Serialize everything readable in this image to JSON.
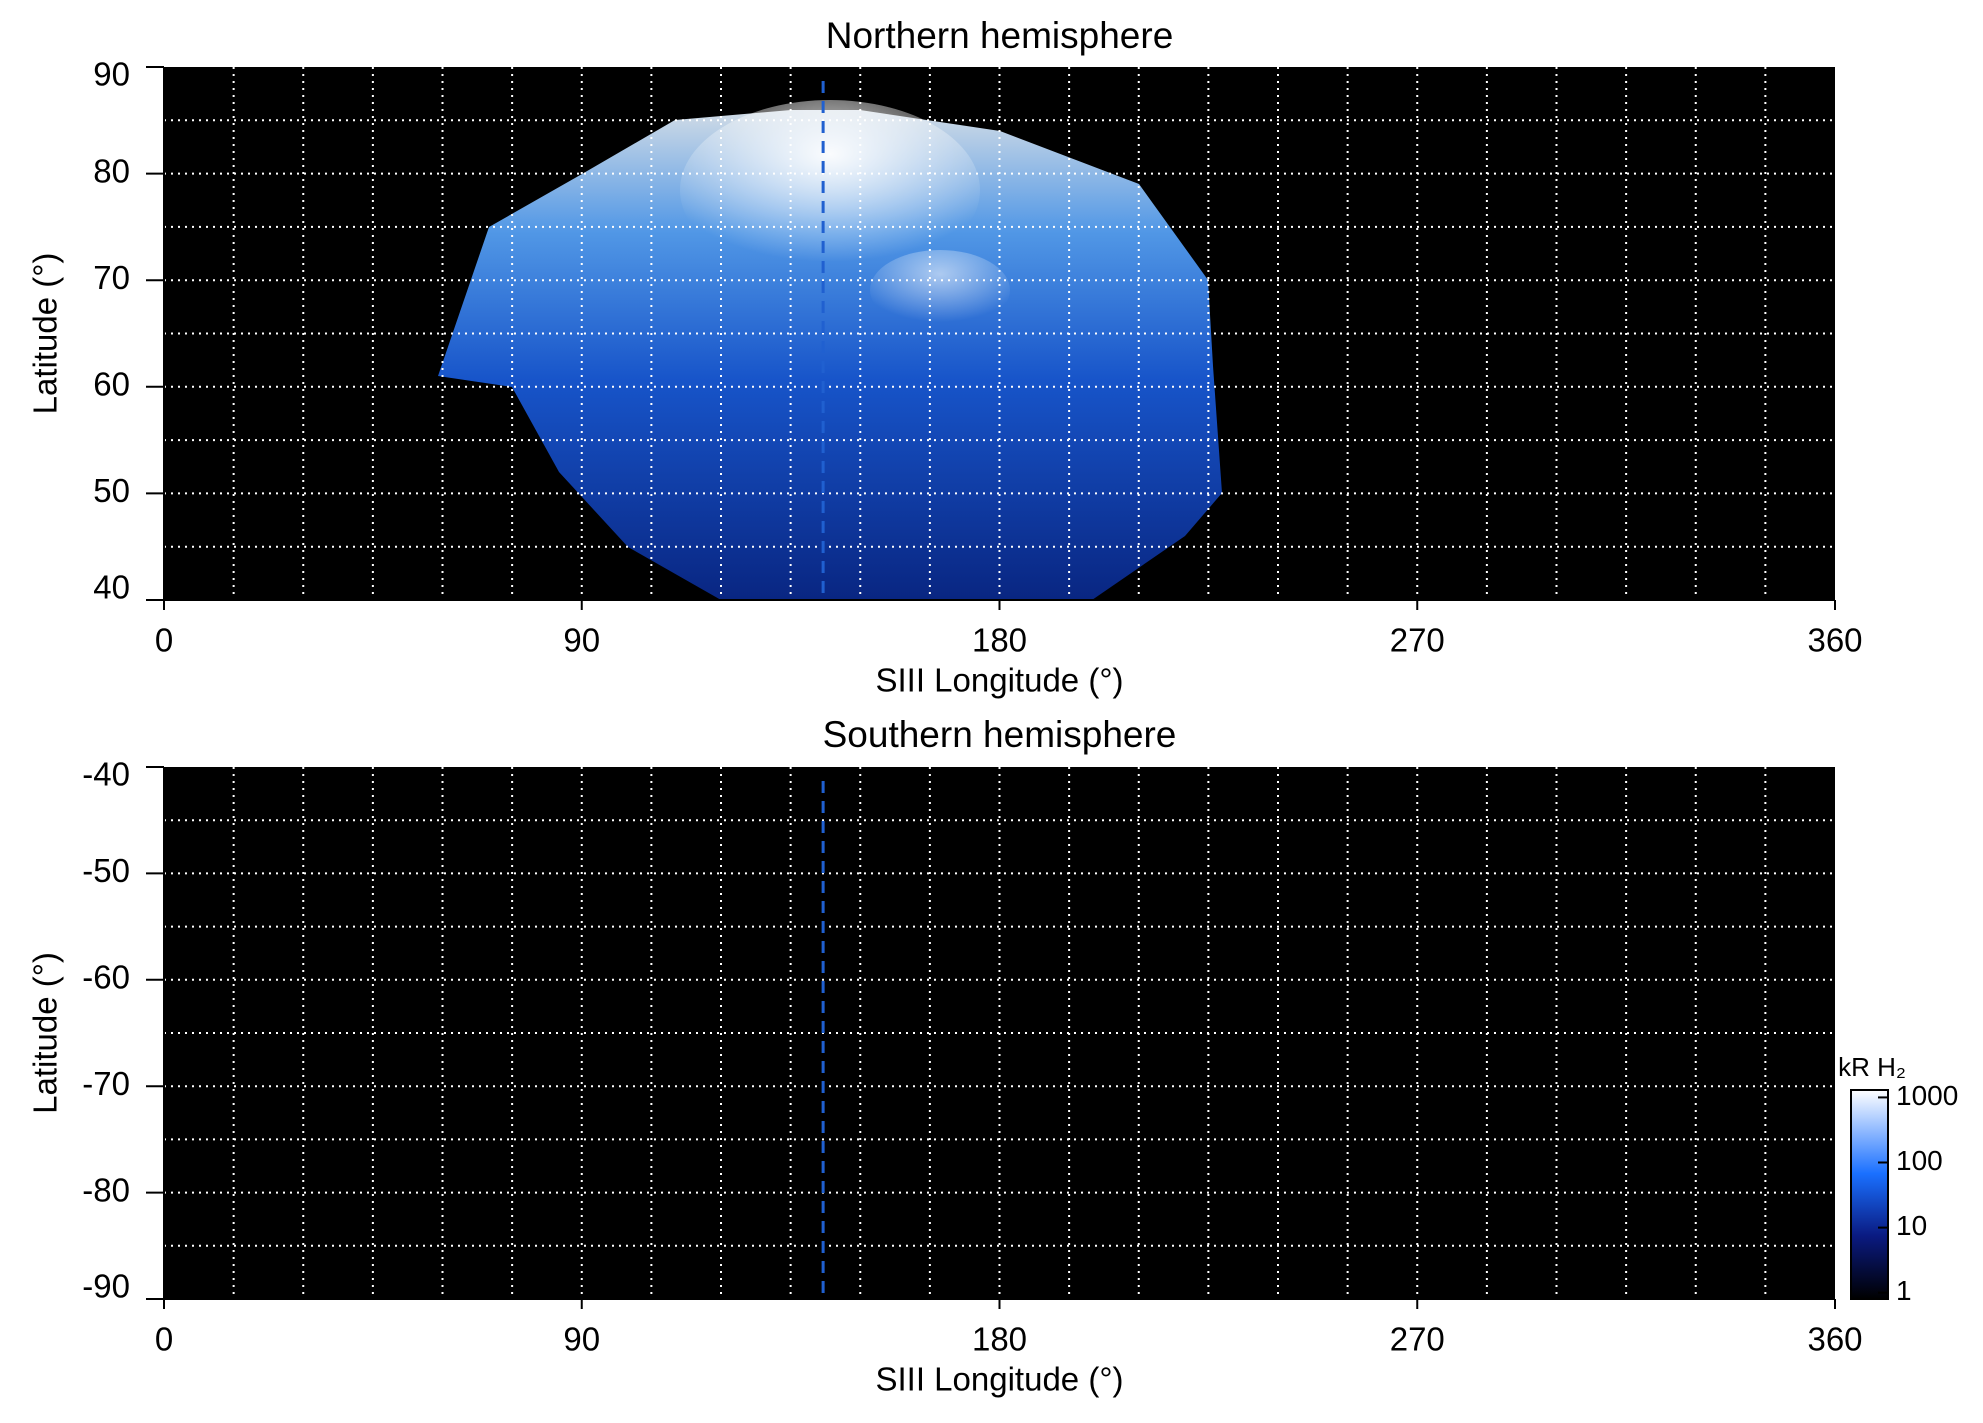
{
  "chart_data": [
    {
      "type": "image",
      "title": "Northern hemisphere",
      "x_label": "SIII Longitude (°)",
      "y_label": "Latitude (°)",
      "xlim": [
        0,
        360
      ],
      "ylim": [
        40,
        90
      ],
      "xticks": [
        0,
        90,
        180,
        270,
        360
      ],
      "yticks": [
        40,
        50,
        60,
        70,
        80,
        90
      ],
      "xgrid": [
        15,
        30,
        45,
        60,
        75,
        90,
        105,
        120,
        135,
        150,
        165,
        180,
        195,
        210,
        225,
        240,
        255,
        270,
        285,
        300,
        315,
        330,
        345
      ],
      "ygrid": [
        45,
        50,
        55,
        60,
        65,
        70,
        75,
        80,
        85
      ],
      "vlines": [
        142
      ],
      "vline_color": "#2060d0"
    },
    {
      "type": "image",
      "title": "Southern hemisphere",
      "x_label": "SIII Longitude (°)",
      "y_label": "Latitude (°)",
      "xlim": [
        0,
        360
      ],
      "ylim": [
        -90,
        -40
      ],
      "xticks": [
        0,
        90,
        180,
        270,
        360
      ],
      "yticks": [
        -90,
        -80,
        -70,
        -60,
        -50,
        -40
      ],
      "xgrid": [
        15,
        30,
        45,
        60,
        75,
        90,
        105,
        120,
        135,
        150,
        165,
        180,
        195,
        210,
        225,
        240,
        255,
        270,
        285,
        300,
        315,
        330,
        345
      ],
      "ygrid": [
        -85,
        -80,
        -75,
        -70,
        -65,
        -60,
        -55,
        -50,
        -45
      ],
      "vlines": [
        142
      ],
      "vline_color": "#2060d0",
      "colorbar": {
        "label": "kR H₂",
        "log": true,
        "lim": [
          0.8,
          1300
        ],
        "ticks": [
          1,
          10,
          100,
          1000
        ]
      }
    }
  ]
}
